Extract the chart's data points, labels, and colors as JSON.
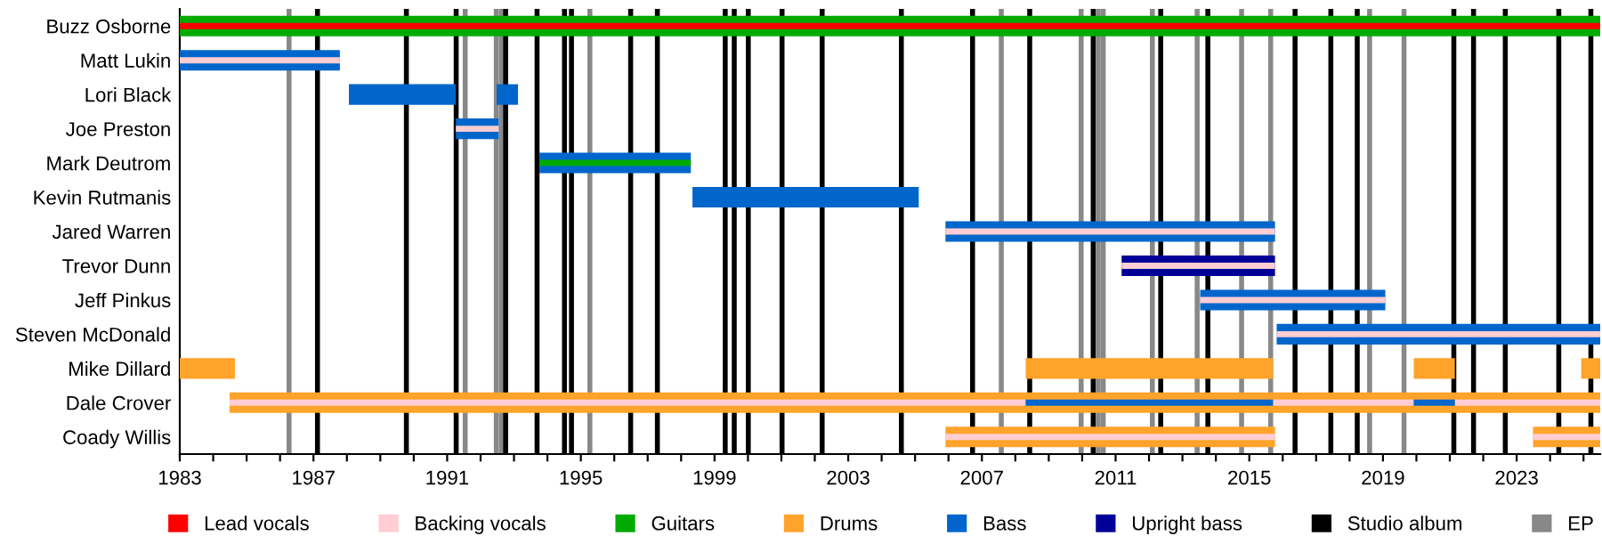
{
  "chart_data": {
    "type": "bar",
    "orientation": "horizontal",
    "categories": [
      "Buzz Osborne",
      "Matt Lukin",
      "Lori Black",
      "Joe Preston",
      "Mark Deutrom",
      "Kevin Rutmanis",
      "Jared Warren",
      "Trevor Dunn",
      "Jeff Pinkus",
      "Steven McDonald",
      "Mike Dillard",
      "Dale Crover",
      "Coady Willis"
    ],
    "series": [
      {
        "name": "Lead vocals",
        "color": "#ff0000",
        "base": [
          1983,
          null,
          null,
          null,
          null,
          null,
          null,
          null,
          null,
          null,
          null,
          null,
          null
        ],
        "values": [
          42.5,
          null,
          null,
          null,
          null,
          null,
          null,
          null,
          null,
          null,
          null,
          null,
          null
        ]
      },
      {
        "name": "Backing vocals",
        "color": "#ffcdd2",
        "base": [
          null,
          1983,
          null,
          1991.26,
          null,
          null,
          2005.91,
          2011.18,
          2013.53,
          2015.82,
          null,
          1984.49,
          2005.91
        ],
        "values": [
          null,
          4.79,
          null,
          1.28,
          null,
          null,
          9.86,
          4.59,
          5.54,
          9.68,
          null,
          23.82,
          9.86
        ]
      },
      {
        "color": "#ffcdd2",
        "base": [
          null,
          null,
          null,
          null,
          null,
          null,
          null,
          null,
          null,
          null,
          null,
          2015.71,
          2023.49
        ],
        "values": [
          null,
          null,
          null,
          null,
          null,
          null,
          null,
          null,
          null,
          null,
          null,
          4.21,
          2.01
        ]
      },
      {
        "color": "#ffcdd2",
        "base": [
          null,
          null,
          null,
          null,
          null,
          null,
          null,
          null,
          null,
          null,
          null,
          2021.15,
          null
        ],
        "values": [
          null,
          null,
          null,
          null,
          null,
          null,
          null,
          null,
          null,
          null,
          null,
          4.35,
          null
        ]
      },
      {
        "name": "Guitars",
        "color": "#00aa00",
        "base": [
          1983,
          null,
          null,
          null,
          1993.76,
          null,
          null,
          null,
          null,
          null,
          null,
          null,
          null
        ],
        "values": [
          42.5,
          null,
          null,
          null,
          4.53,
          null,
          null,
          null,
          null,
          null,
          null,
          null,
          null
        ]
      },
      {
        "name": "Drums",
        "color": "#ffa32b",
        "base": [
          null,
          null,
          null,
          null,
          null,
          null,
          null,
          null,
          null,
          null,
          1983,
          1984.49,
          2005.91
        ],
        "values": [
          null,
          null,
          null,
          null,
          null,
          null,
          null,
          null,
          null,
          null,
          1.65,
          41.01,
          9.86
        ]
      },
      {
        "color": "#ffa32b",
        "base": [
          null,
          null,
          null,
          null,
          null,
          null,
          null,
          null,
          null,
          null,
          2008.31,
          null,
          2023.49
        ],
        "values": [
          null,
          null,
          null,
          null,
          null,
          null,
          null,
          null,
          null,
          null,
          7.4,
          null,
          2.01
        ]
      },
      {
        "color": "#ffa32b",
        "base": [
          null,
          null,
          null,
          null,
          null,
          null,
          null,
          null,
          null,
          null,
          2019.92,
          null,
          null
        ],
        "values": [
          null,
          null,
          null,
          null,
          null,
          null,
          null,
          null,
          null,
          null,
          1.23,
          null,
          null
        ]
      },
      {
        "color": "#ffa32b",
        "base": [
          null,
          null,
          null,
          null,
          null,
          null,
          null,
          null,
          null,
          null,
          2024.93,
          null,
          null
        ],
        "values": [
          null,
          null,
          null,
          null,
          null,
          null,
          null,
          null,
          null,
          null,
          0.57,
          null,
          null
        ]
      },
      {
        "name": "Bass",
        "color": "#0066cc",
        "base": [
          null,
          1983,
          1988.06,
          1991.26,
          1993.76,
          1998.34,
          2005.91,
          null,
          2013.53,
          2015.82,
          null,
          2008.31,
          null
        ],
        "values": [
          null,
          4.79,
          3.2,
          1.28,
          4.53,
          6.77,
          9.86,
          null,
          5.54,
          9.68,
          null,
          7.4,
          null
        ]
      },
      {
        "color": "#0066cc",
        "base": [
          null,
          null,
          1992.48,
          null,
          null,
          null,
          null,
          null,
          null,
          null,
          null,
          2019.92,
          null
        ],
        "values": [
          null,
          null,
          0.64,
          null,
          null,
          null,
          null,
          null,
          null,
          null,
          null,
          1.23,
          null
        ]
      },
      {
        "name": "Upright bass",
        "color": "#000099",
        "base": [
          null,
          null,
          null,
          null,
          null,
          null,
          null,
          2011.18,
          null,
          null,
          null,
          null,
          null
        ],
        "values": [
          null,
          null,
          null,
          null,
          null,
          null,
          null,
          4.59,
          null,
          null,
          null,
          null,
          null
        ]
      }
    ],
    "xlim": [
      1983,
      2025.5
    ],
    "xticks": [
      1983,
      {
        "value": 1984,
        "label": null
      },
      {
        "value": 1985,
        "label": null
      },
      {
        "value": 1986,
        "label": null
      },
      1987,
      {
        "value": 1988,
        "label": null
      },
      {
        "value": 1989,
        "label": null
      },
      {
        "value": 1990,
        "label": null
      },
      1991,
      {
        "value": 1992,
        "label": null
      },
      {
        "value": 1993,
        "label": null
      },
      {
        "value": 1994,
        "label": null
      },
      1995,
      {
        "value": 1996,
        "label": null
      },
      {
        "value": 1997,
        "label": null
      },
      {
        "value": 1998,
        "label": null
      },
      1999,
      {
        "value": 2000,
        "label": null
      },
      {
        "value": 2001,
        "label": null
      },
      {
        "value": 2002,
        "label": null
      },
      2003,
      {
        "value": 2004,
        "label": null
      },
      {
        "value": 2005,
        "label": null
      },
      {
        "value": 2006,
        "label": null
      },
      2007,
      {
        "value": 2008,
        "label": null
      },
      {
        "value": 2009,
        "label": null
      },
      {
        "value": 2010,
        "label": null
      },
      2011,
      {
        "value": 2012,
        "label": null
      },
      {
        "value": 2013,
        "label": null
      },
      {
        "value": 2014,
        "label": null
      },
      2015,
      {
        "value": 2016,
        "label": null
      },
      {
        "value": 2017,
        "label": null
      },
      {
        "value": 2018,
        "label": null
      },
      2019,
      {
        "value": 2020,
        "label": null
      },
      {
        "value": 2021,
        "label": null
      },
      {
        "value": 2022,
        "label": null
      },
      2023,
      {
        "value": 2024,
        "label": null
      },
      {
        "value": 2025,
        "label": null
      }
    ],
    "ref_lines": [
      {
        "axis": "x",
        "value": 1987.12,
        "label": "Studio album",
        "color": "#000000"
      },
      {
        "axis": "x",
        "value": 1986.27,
        "label": "EP",
        "color": "#888888"
      },
      {
        "axis": "x",
        "value": 1989.78,
        "color": "#000000"
      },
      {
        "axis": "x",
        "value": 1991.27,
        "color": "#000000"
      },
      {
        "axis": "x",
        "value": 1991.54,
        "color": "#888888"
      },
      {
        "axis": "x",
        "value": 1992.47,
        "color": "#888888"
      },
      {
        "axis": "x",
        "value": 1992.62,
        "color": "#888888"
      },
      {
        "axis": "x",
        "value": 1992.75,
        "color": "#000000"
      },
      {
        "axis": "x",
        "value": 1993.69,
        "color": "#000000"
      },
      {
        "axis": "x",
        "value": 1994.51,
        "color": "#000000"
      },
      {
        "axis": "x",
        "value": 1994.72,
        "color": "#000000"
      },
      {
        "axis": "x",
        "value": 1995.27,
        "color": "#888888"
      },
      {
        "axis": "x",
        "value": 1996.49,
        "color": "#000000"
      },
      {
        "axis": "x",
        "value": 1997.29,
        "color": "#000000"
      },
      {
        "axis": "x",
        "value": 1999.32,
        "color": "#000000"
      },
      {
        "axis": "x",
        "value": 1999.59,
        "color": "#000000"
      },
      {
        "axis": "x",
        "value": 2000.01,
        "color": "#000000"
      },
      {
        "axis": "x",
        "value": 2001.02,
        "color": "#000000"
      },
      {
        "axis": "x",
        "value": 2002.22,
        "color": "#000000"
      },
      {
        "axis": "x",
        "value": 2004.59,
        "color": "#000000"
      },
      {
        "axis": "x",
        "value": 2006.72,
        "color": "#000000"
      },
      {
        "axis": "x",
        "value": 2007.58,
        "color": "#888888"
      },
      {
        "axis": "x",
        "value": 2008.43,
        "color": "#000000"
      },
      {
        "axis": "x",
        "value": 2009.97,
        "color": "#888888"
      },
      {
        "axis": "x",
        "value": 2010.33,
        "color": "#000000"
      },
      {
        "axis": "x",
        "value": 2010.48,
        "color": "#888888"
      },
      {
        "axis": "x",
        "value": 2010.63,
        "color": "#888888"
      },
      {
        "axis": "x",
        "value": 2012.1,
        "color": "#888888"
      },
      {
        "axis": "x",
        "value": 2012.35,
        "color": "#000000"
      },
      {
        "axis": "x",
        "value": 2013.44,
        "color": "#888888"
      },
      {
        "axis": "x",
        "value": 2013.76,
        "color": "#000000"
      },
      {
        "axis": "x",
        "value": 2014.77,
        "color": "#888888"
      },
      {
        "axis": "x",
        "value": 2015.64,
        "color": "#888888"
      },
      {
        "axis": "x",
        "value": 2016.37,
        "color": "#000000"
      },
      {
        "axis": "x",
        "value": 2017.44,
        "color": "#000000"
      },
      {
        "axis": "x",
        "value": 2018.23,
        "color": "#000000"
      },
      {
        "axis": "x",
        "value": 2018.6,
        "color": "#888888"
      },
      {
        "axis": "x",
        "value": 2019.63,
        "color": "#888888"
      },
      {
        "axis": "x",
        "value": 2021.12,
        "color": "#000000"
      },
      {
        "axis": "x",
        "value": 2021.71,
        "color": "#000000"
      },
      {
        "axis": "x",
        "value": 2022.66,
        "color": "#000000"
      },
      {
        "axis": "x",
        "value": 2024.26,
        "color": "#000000"
      },
      {
        "axis": "x",
        "value": 2025.22,
        "color": "#000000"
      }
    ],
    "legend": "bottom"
  }
}
